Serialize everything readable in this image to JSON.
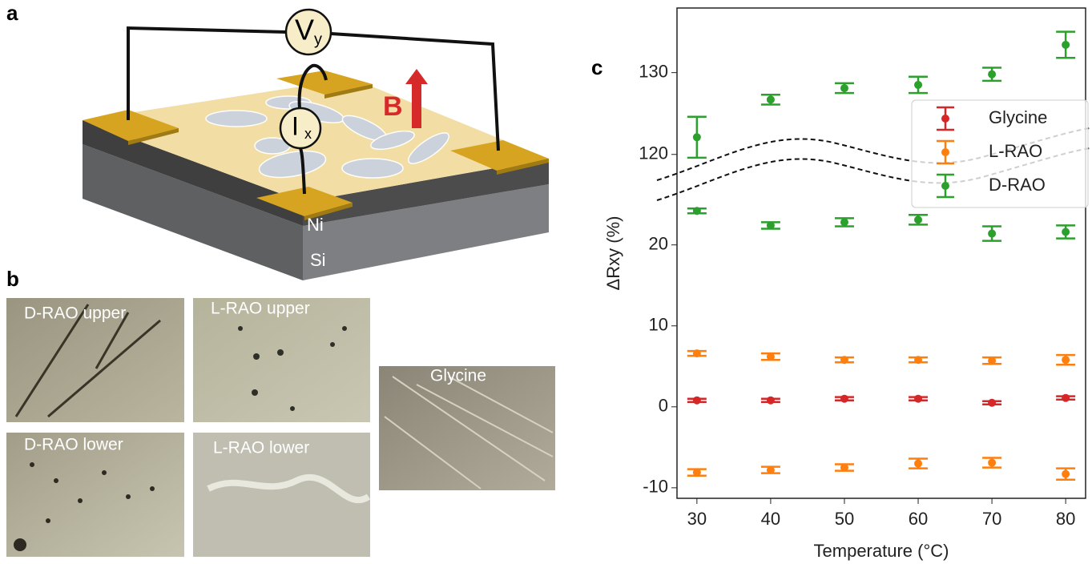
{
  "panels": {
    "a": "a",
    "b": "b",
    "c": "c"
  },
  "diagram": {
    "voltage": {
      "symbol": "V",
      "subscript": "y"
    },
    "current": {
      "symbol": "I",
      "subscript": "x"
    },
    "field": "B",
    "layers": [
      "Ni",
      "Si"
    ]
  },
  "micrographs": [
    "D-RAO upper",
    "L-RAO upper",
    "D-RAO lower",
    "L-RAO lower",
    "Glycine"
  ],
  "chart_data": {
    "type": "errorbar",
    "y_label": "ΔRxy (%)",
    "x_label": "Temperature (°C)",
    "x": [
      30,
      40,
      50,
      60,
      70,
      80
    ],
    "xlim": [
      27.3,
      82.7
    ],
    "xticks": [
      30,
      40,
      50,
      60,
      70,
      80
    ],
    "ylim": [
      -11.3,
      26.5
    ],
    "yticks": [
      -10,
      0,
      10,
      20
    ],
    "y2lim": [
      118.8,
      137.9
    ],
    "y2ticks": [
      120,
      130
    ],
    "broken_axis": true,
    "legend": "upper right",
    "series": [
      {
        "name": "Glycine",
        "color": "#d62728",
        "values": [
          0.8,
          0.8,
          1.0,
          1.0,
          0.5,
          1.1
        ],
        "errors": [
          0.2,
          0.2,
          0.2,
          0.2,
          0.2,
          0.2
        ]
      },
      {
        "name": "L-RAO",
        "color": "#ff7f0e",
        "values": [
          6.6,
          6.2,
          5.8,
          5.8,
          5.7,
          5.8
        ],
        "errors": [
          0.3,
          0.4,
          0.3,
          0.3,
          0.4,
          0.6
        ]
      },
      {
        "name": "D-RAO",
        "color": "#2ca02c",
        "axis": "y2",
        "values": [
          122.1,
          126.7,
          128.1,
          128.5,
          129.8,
          133.4
        ],
        "errors": [
          2.5,
          0.6,
          0.6,
          1.0,
          0.8,
          1.6
        ]
      },
      {
        "color": "#ff7f0e",
        "values": [
          -8.1,
          -7.8,
          -7.5,
          -7.0,
          -6.9,
          -8.3
        ],
        "errors": [
          0.4,
          0.4,
          0.4,
          0.6,
          0.6,
          0.7
        ]
      },
      {
        "color": "#2ca02c",
        "values": [
          24.2,
          22.4,
          22.8,
          23.1,
          21.4,
          21.6
        ],
        "errors": [
          0.3,
          0.4,
          0.5,
          0.6,
          0.9,
          0.8
        ]
      }
    ]
  }
}
